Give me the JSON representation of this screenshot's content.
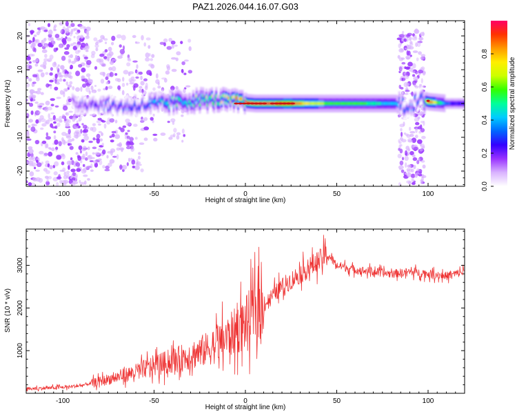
{
  "title": "PAZ1.2026.044.16.07.G03",
  "colors": {
    "snr_line": "#ee3333",
    "band_core": "#cc1111",
    "scatter": "#8a2be2",
    "frame": "#000000"
  },
  "chart_data": [
    {
      "type": "heatmap",
      "title": "PAZ1.2026.044.16.07.G03",
      "xlabel": "Height of straight line (km)",
      "ylabel": "Frequency (Hz)",
      "xlim": [
        -120,
        120
      ],
      "ylim": [
        -24.5,
        24.5
      ],
      "xticks": [
        -100,
        -50,
        0,
        50,
        100
      ],
      "xtick_labels": [
        "-100",
        "-50",
        "0",
        "50",
        "100"
      ],
      "yticks": [
        -20,
        -10,
        0,
        10,
        20
      ],
      "ytick_labels": [
        "-20",
        "-10",
        "0",
        "10",
        "20"
      ],
      "colorbar": {
        "label": "Normalized spectral amplitude",
        "range": [
          0,
          1
        ],
        "ticks": [
          0.0,
          0.2,
          0.4,
          0.6,
          0.8
        ],
        "tick_labels": [
          "0.0",
          "0.2",
          "0.4",
          "0.6",
          "0.8"
        ],
        "colormap": [
          "#ffffff",
          "#d9b3ff",
          "#9933ff",
          "#3300ff",
          "#0066ff",
          "#00ccff",
          "#00ff99",
          "#33ff00",
          "#ccff00",
          "#ffee00",
          "#ff9900",
          "#ff3300",
          "#ff0066"
        ]
      },
      "band_profile": {
        "x": [
          -95,
          -85,
          -75,
          -65,
          -55,
          -45,
          -35,
          -25,
          -15,
          -5,
          5,
          15,
          25,
          35,
          45,
          55,
          65,
          75,
          82,
          87,
          92,
          97,
          100,
          110,
          120
        ],
        "center_freq": [
          0,
          0,
          -0.5,
          -1,
          -0.5,
          0,
          0.5,
          1,
          1,
          0.5,
          0,
          0,
          0,
          0,
          0,
          0,
          0,
          0,
          0,
          -1,
          0,
          1,
          0.5,
          0,
          0
        ],
        "peak_amplitude": [
          0.2,
          0.25,
          0.28,
          0.3,
          0.35,
          0.45,
          0.5,
          0.55,
          0.6,
          0.85,
          0.9,
          0.9,
          0.92,
          0.7,
          0.6,
          0.6,
          0.55,
          0.45,
          0.4,
          0.3,
          0.3,
          0.35,
          0.9,
          0.3,
          0.25
        ]
      },
      "scatter_regions": [
        {
          "x_range": [
            -120,
            -85
          ],
          "f_range": [
            -24,
            24
          ],
          "density": "high"
        },
        {
          "x_range": [
            -85,
            -55
          ],
          "f_range": [
            -20,
            20
          ],
          "density": "medium"
        },
        {
          "x_range": [
            -55,
            -30
          ],
          "f_range": [
            -12,
            20
          ],
          "density": "low"
        },
        {
          "x_range": [
            84,
            98
          ],
          "f_range": [
            -24,
            22
          ],
          "density": "medium"
        }
      ]
    },
    {
      "type": "line",
      "xlabel": "Height of straight line (km)",
      "ylabel": "SNR (10 * v/v)",
      "xlim": [
        -120,
        120
      ],
      "ylim": [
        0,
        3850
      ],
      "xticks": [
        -100,
        -50,
        0,
        50,
        100
      ],
      "xtick_labels": [
        "-100",
        "-50",
        "0",
        "50",
        "100"
      ],
      "yticks": [
        1000,
        2000,
        3000
      ],
      "ytick_labels": [
        "1000",
        "2000",
        "3000"
      ],
      "series": [
        {
          "name": "SNR",
          "x": [
            -120,
            -110,
            -100,
            -90,
            -80,
            -70,
            -60,
            -50,
            -40,
            -30,
            -20,
            -10,
            0,
            5,
            10,
            15,
            20,
            30,
            40,
            45,
            50,
            60,
            70,
            80,
            90,
            100,
            110,
            120
          ],
          "values": [
            100,
            120,
            140,
            180,
            280,
            380,
            500,
            650,
            750,
            900,
            1050,
            1300,
            1650,
            1900,
            2050,
            2300,
            2500,
            2800,
            3100,
            3250,
            3000,
            2900,
            2850,
            2800,
            2850,
            2800,
            2750,
            2850
          ]
        }
      ]
    }
  ]
}
